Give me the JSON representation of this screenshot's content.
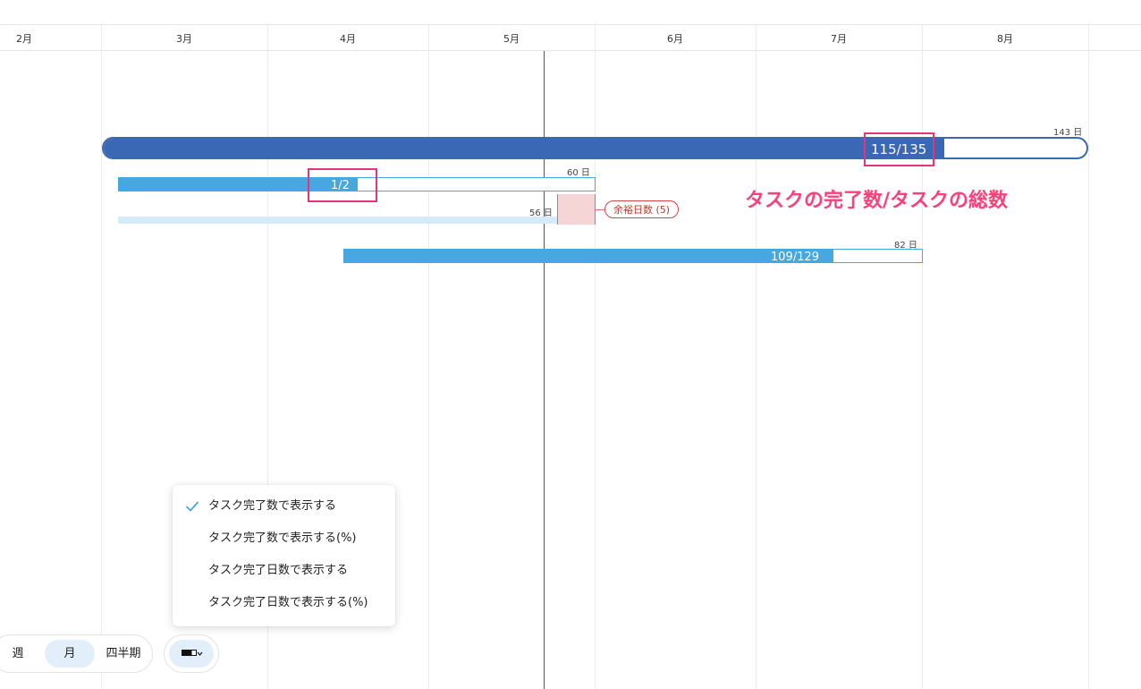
{
  "timeline": {
    "months": [
      "2月",
      "3月",
      "4月",
      "5月",
      "6月",
      "7月",
      "8月"
    ]
  },
  "bars": {
    "main": {
      "label": "115/135",
      "duration": "143 日",
      "progress": 0.85
    },
    "task1": {
      "label": "1/2",
      "duration": "60 日",
      "progress": 0.5
    },
    "task2": {
      "duration": "56 日"
    },
    "task3": {
      "label": "109/129",
      "duration": "82 日",
      "progress": 0.845
    }
  },
  "slack": {
    "label": "余裕日数 (5)"
  },
  "annotation": {
    "text": "タスクの完了数/タスクの総数",
    "color": "#ff3f7a"
  },
  "menu": {
    "items": [
      {
        "label": "タスク完了数で表示する",
        "checked": true
      },
      {
        "label": "タスク完了数で表示する(%)",
        "checked": false
      },
      {
        "label": "タスク完了日数で表示する",
        "checked": false
      },
      {
        "label": "タスク完了日数で表示する(%)",
        "checked": false
      }
    ]
  },
  "scale": {
    "options": [
      "週",
      "月",
      "四半期"
    ],
    "selected": "月"
  },
  "icons": {
    "check": "check-icon",
    "progress_toggle": "progress-bar-icon"
  },
  "colors": {
    "main_bar": "#3b68b5",
    "task_bar": "#47a7df",
    "slack": "#d14545",
    "highlight": "#e8337a",
    "active_bg": "#e2eef9"
  }
}
